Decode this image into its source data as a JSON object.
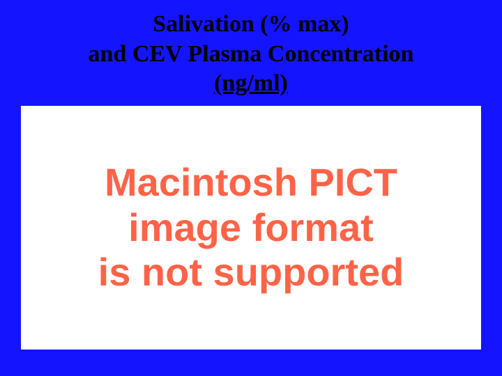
{
  "slide": {
    "background_color": "#1414ff",
    "title": {
      "lines": [
        {
          "text": "Salivation (% max)",
          "underline": false
        },
        {
          "text": "and CEV Plasma Concentration",
          "underline": false
        },
        {
          "text": "(ng/ml)",
          "underline": true
        }
      ],
      "font_family": "Times New Roman",
      "font_weight": "bold",
      "font_size_pt": 26,
      "color": "#000000",
      "align": "center"
    },
    "image_placeholder": {
      "background_color": "#ffffff",
      "text_lines": [
        "Macintosh PICT",
        "image format",
        "is not supported"
      ],
      "text_color": "#ff6347",
      "font_family": "Arial",
      "font_weight": "bold",
      "font_size_pt": 42,
      "align": "center"
    }
  }
}
